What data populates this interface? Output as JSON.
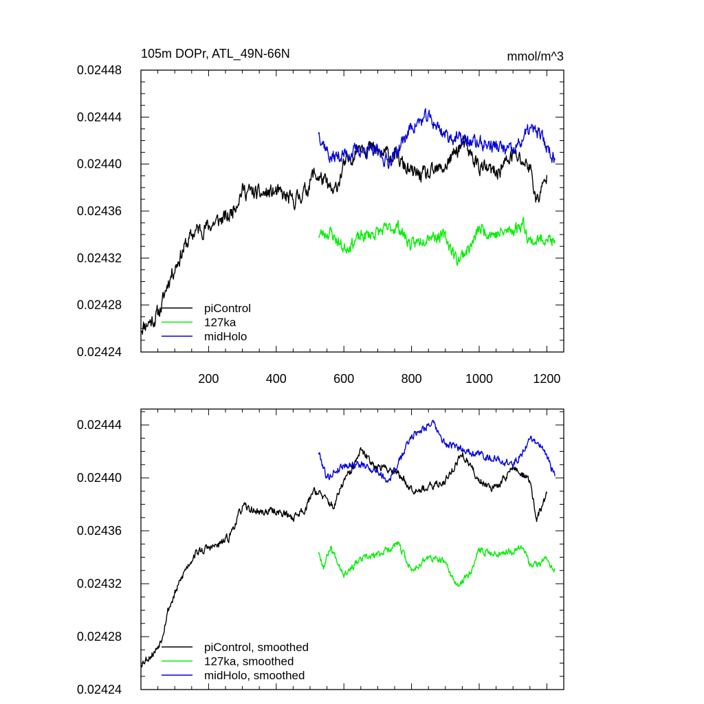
{
  "chart_data": [
    {
      "type": "line",
      "title": "105m DOPr, ATL_49N-66N",
      "units": "mmol/m^3",
      "xlim": [
        0,
        1250
      ],
      "ylim": [
        0.02424,
        0.02448
      ],
      "xticks": [
        200,
        400,
        600,
        800,
        1000,
        1200
      ],
      "xtick_labels": [
        "200",
        "400",
        "600",
        "800",
        "1000",
        "1200"
      ],
      "yticks": [
        0.02424,
        0.02428,
        0.02432,
        0.02436,
        0.0244,
        0.02444,
        0.02448
      ],
      "ytick_labels": [
        "0.02424",
        "0.02428",
        "0.02432",
        "0.02436",
        "0.02440",
        "0.02444",
        "0.02448"
      ],
      "legend_position": "bottom-left",
      "series": [
        {
          "name": "piControl",
          "color": "#000000",
          "noise": 5.5e-06,
          "seed": 11,
          "keypoints": [
            [
              0,
              0.024261
            ],
            [
              20,
              0.024265
            ],
            [
              40,
              0.024268
            ],
            [
              60,
              0.024278
            ],
            [
              80,
              0.0243
            ],
            [
              100,
              0.024312
            ],
            [
              130,
              0.02433
            ],
            [
              160,
              0.024343
            ],
            [
              200,
              0.024347
            ],
            [
              230,
              0.024352
            ],
            [
              260,
              0.024355
            ],
            [
              300,
              0.024378
            ],
            [
              350,
              0.024374
            ],
            [
              400,
              0.024376
            ],
            [
              450,
              0.024368
            ],
            [
              490,
              0.024378
            ],
            [
              510,
              0.024392
            ],
            [
              540,
              0.024386
            ],
            [
              570,
              0.024374
            ],
            [
              600,
              0.024398
            ],
            [
              620,
              0.024405
            ],
            [
              650,
              0.024418
            ],
            [
              700,
              0.02441
            ],
            [
              750,
              0.024407
            ],
            [
              800,
              0.024392
            ],
            [
              850,
              0.02439
            ],
            [
              900,
              0.024398
            ],
            [
              950,
              0.024418
            ],
            [
              1000,
              0.024398
            ],
            [
              1050,
              0.024392
            ],
            [
              1100,
              0.024408
            ],
            [
              1150,
              0.024398
            ],
            [
              1170,
              0.024368
            ],
            [
              1200,
              0.024388
            ]
          ]
        },
        {
          "name": "127ka",
          "color": "#00ee00",
          "noise": 4.5e-06,
          "seed": 23,
          "keypoints": [
            [
              525,
              0.02434
            ],
            [
              560,
              0.024342
            ],
            [
              600,
              0.024328
            ],
            [
              650,
              0.024338
            ],
            [
              700,
              0.024342
            ],
            [
              760,
              0.024347
            ],
            [
              800,
              0.02433
            ],
            [
              850,
              0.02434
            ],
            [
              900,
              0.024338
            ],
            [
              935,
              0.024318
            ],
            [
              980,
              0.024332
            ],
            [
              1000,
              0.024345
            ],
            [
              1050,
              0.02434
            ],
            [
              1100,
              0.024344
            ],
            [
              1130,
              0.02435
            ],
            [
              1150,
              0.024334
            ],
            [
              1180,
              0.024335
            ],
            [
              1200,
              0.024339
            ],
            [
              1225,
              0.02433
            ]
          ]
        },
        {
          "name": "midHolo",
          "color": "#0000dd",
          "noise": 5e-06,
          "seed": 37,
          "keypoints": [
            [
              525,
              0.024428
            ],
            [
              560,
              0.024405
            ],
            [
              600,
              0.024408
            ],
            [
              650,
              0.024412
            ],
            [
              700,
              0.02441
            ],
            [
              730,
              0.024402
            ],
            [
              760,
              0.024412
            ],
            [
              800,
              0.024432
            ],
            [
              850,
              0.02444
            ],
            [
              900,
              0.024425
            ],
            [
              950,
              0.02442
            ],
            [
              1000,
              0.024418
            ],
            [
              1050,
              0.024415
            ],
            [
              1100,
              0.02441
            ],
            [
              1130,
              0.024422
            ],
            [
              1150,
              0.02443
            ],
            [
              1180,
              0.024425
            ],
            [
              1200,
              0.024415
            ],
            [
              1225,
              0.024404
            ]
          ]
        }
      ]
    },
    {
      "type": "line",
      "xlim": [
        0,
        1250
      ],
      "ylim": [
        0.02424,
        0.024452
      ],
      "xticks": [
        200,
        400,
        600,
        800,
        1000,
        1200
      ],
      "yticks": [
        0.02424,
        0.02428,
        0.02432,
        0.02436,
        0.0244,
        0.02444
      ],
      "ytick_labels": [
        "0.02424",
        "0.02428",
        "0.02432",
        "0.02436",
        "0.02440",
        "0.02444"
      ],
      "legend_position": "bottom-left",
      "series": [
        {
          "name": "piControl, smoothed",
          "color": "#000000",
          "noise": 2.5e-06,
          "seed": 53,
          "keypoints": [
            [
              0,
              0.02426
            ],
            [
              20,
              0.024264
            ],
            [
              40,
              0.024268
            ],
            [
              60,
              0.024278
            ],
            [
              80,
              0.0243
            ],
            [
              100,
              0.024312
            ],
            [
              130,
              0.02433
            ],
            [
              160,
              0.024343
            ],
            [
              200,
              0.024347
            ],
            [
              230,
              0.024349
            ],
            [
              260,
              0.024355
            ],
            [
              300,
              0.024378
            ],
            [
              350,
              0.024374
            ],
            [
              400,
              0.024375
            ],
            [
              450,
              0.02437
            ],
            [
              490,
              0.024378
            ],
            [
              510,
              0.024392
            ],
            [
              540,
              0.024385
            ],
            [
              570,
              0.024378
            ],
            [
              600,
              0.024398
            ],
            [
              620,
              0.024404
            ],
            [
              650,
              0.02442
            ],
            [
              700,
              0.024408
            ],
            [
              750,
              0.024406
            ],
            [
              800,
              0.024392
            ],
            [
              850,
              0.024392
            ],
            [
              900,
              0.024398
            ],
            [
              950,
              0.024418
            ],
            [
              1000,
              0.024398
            ],
            [
              1050,
              0.024392
            ],
            [
              1100,
              0.024408
            ],
            [
              1150,
              0.024398
            ],
            [
              1170,
              0.024368
            ],
            [
              1200,
              0.024388
            ]
          ]
        },
        {
          "name": "127ka, smoothed",
          "color": "#00ee00",
          "noise": 2.2e-06,
          "seed": 67,
          "keypoints": [
            [
              525,
              0.024345
            ],
            [
              540,
              0.024333
            ],
            [
              560,
              0.024348
            ],
            [
              600,
              0.024328
            ],
            [
              650,
              0.024338
            ],
            [
              700,
              0.024342
            ],
            [
              760,
              0.02435
            ],
            [
              800,
              0.02433
            ],
            [
              850,
              0.02434
            ],
            [
              900,
              0.024336
            ],
            [
              935,
              0.024317
            ],
            [
              980,
              0.024332
            ],
            [
              1000,
              0.024345
            ],
            [
              1050,
              0.024343
            ],
            [
              1100,
              0.024345
            ],
            [
              1130,
              0.02435
            ],
            [
              1150,
              0.024333
            ],
            [
              1180,
              0.024335
            ],
            [
              1200,
              0.02434
            ],
            [
              1225,
              0.02433
            ]
          ]
        },
        {
          "name": "midHolo, smoothed",
          "color": "#0000dd",
          "noise": 2.4e-06,
          "seed": 79,
          "keypoints": [
            [
              525,
              0.02442
            ],
            [
              550,
              0.0244
            ],
            [
              600,
              0.02441
            ],
            [
              650,
              0.02441
            ],
            [
              700,
              0.024405
            ],
            [
              730,
              0.024398
            ],
            [
              760,
              0.02441
            ],
            [
              800,
              0.024432
            ],
            [
              860,
              0.024442
            ],
            [
              900,
              0.024425
            ],
            [
              950,
              0.024422
            ],
            [
              1000,
              0.024418
            ],
            [
              1050,
              0.024414
            ],
            [
              1100,
              0.02441
            ],
            [
              1130,
              0.02442
            ],
            [
              1150,
              0.02443
            ],
            [
              1180,
              0.024425
            ],
            [
              1200,
              0.024415
            ],
            [
              1225,
              0.024402
            ]
          ]
        }
      ]
    }
  ]
}
